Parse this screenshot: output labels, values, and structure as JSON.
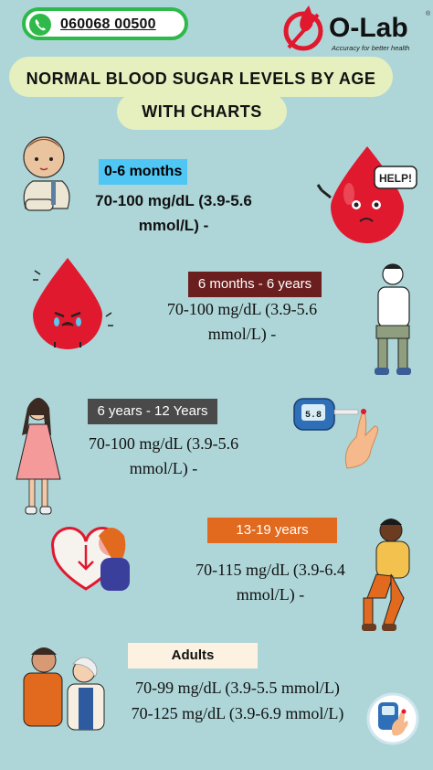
{
  "header": {
    "phone_number": "060068 00500",
    "logo_text": "O-Lab",
    "logo_tagline": "Accuracy for better health",
    "logo_mark": "®"
  },
  "title": {
    "line1": "NORMAL BLOOD SUGAR LEVELS BY AGE",
    "line2": "WITH CHARTS"
  },
  "sections": [
    {
      "age": "0-6 months",
      "value": "70-100 mg/dL (3.9-5.6 mmol/L) -",
      "icons": [
        "baby-illustration",
        "blood-drop-help-illustration"
      ]
    },
    {
      "age": "6 months - 6 years",
      "value": "70-100 mg/dL (3.9-5.6 mmol/L) -",
      "icons": [
        "crying-blood-drop-illustration",
        "sitting-man-illustration"
      ]
    },
    {
      "age": "6 years - 12 Years",
      "value": "70-100 mg/dL (3.9-5.6 mmol/L) -",
      "icons": [
        "girl-illustration",
        "glucometer-hand-illustration"
      ]
    },
    {
      "age": "13-19 years",
      "value": "70-115 mg/dL (3.9-6.4 mmol/L) -",
      "icons": [
        "sad-teen-heart-illustration",
        "sitting-teen-illustration"
      ]
    },
    {
      "age": "Adults",
      "value": "70-99 mg/dL (3.9-5.5 mmol/L) 70-125 mg/dL (3.9-6.9 mmol/L)",
      "icons": [
        "couple-illustration",
        "glucometer-badge-illustration"
      ]
    }
  ],
  "help_bubble": "HELP!",
  "glucometer_reading": "5.8",
  "colors": {
    "background": "#aed6d8",
    "phone_green": "#2fb94a",
    "blood_red": "#e0192f",
    "title_bg": "#e6efbe"
  }
}
